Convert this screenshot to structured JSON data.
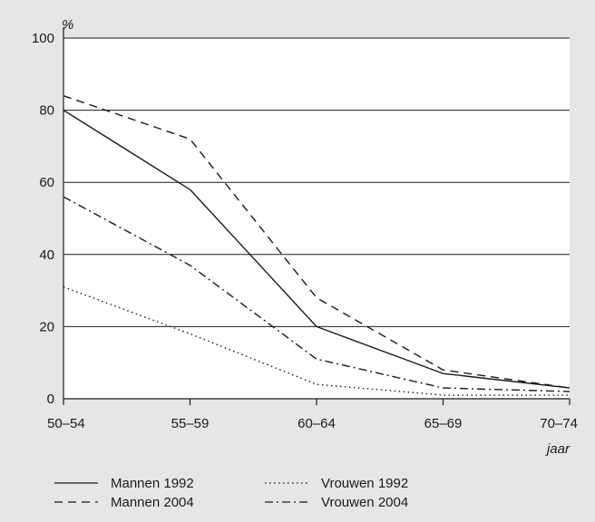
{
  "chart_data": {
    "type": "line",
    "categories": [
      "50–54",
      "55–59",
      "60–64",
      "65–69",
      "70–74"
    ],
    "y_unit": "%",
    "x_unit": "jaar",
    "ylim": [
      0,
      100
    ],
    "yticks": [
      0,
      20,
      40,
      60,
      80,
      100
    ],
    "grid": "horizontal",
    "legend_position": "bottom",
    "series": [
      {
        "name": "Mannen 1992",
        "style": "solid",
        "values": [
          80,
          58,
          20,
          7,
          3
        ]
      },
      {
        "name": "Mannen 2004",
        "style": "dashed",
        "values": [
          84,
          72,
          28,
          8,
          3
        ]
      },
      {
        "name": "Vrouwen 1992",
        "style": "dotted",
        "values": [
          31,
          18,
          4,
          1,
          1
        ]
      },
      {
        "name": "Vrouwen 2004",
        "style": "dash-dot",
        "values": [
          56,
          37,
          11,
          3,
          2
        ]
      }
    ],
    "colors": {
      "background": "#e6e6e6",
      "plot": "#ffffff",
      "line": "#1a1a1a"
    }
  }
}
